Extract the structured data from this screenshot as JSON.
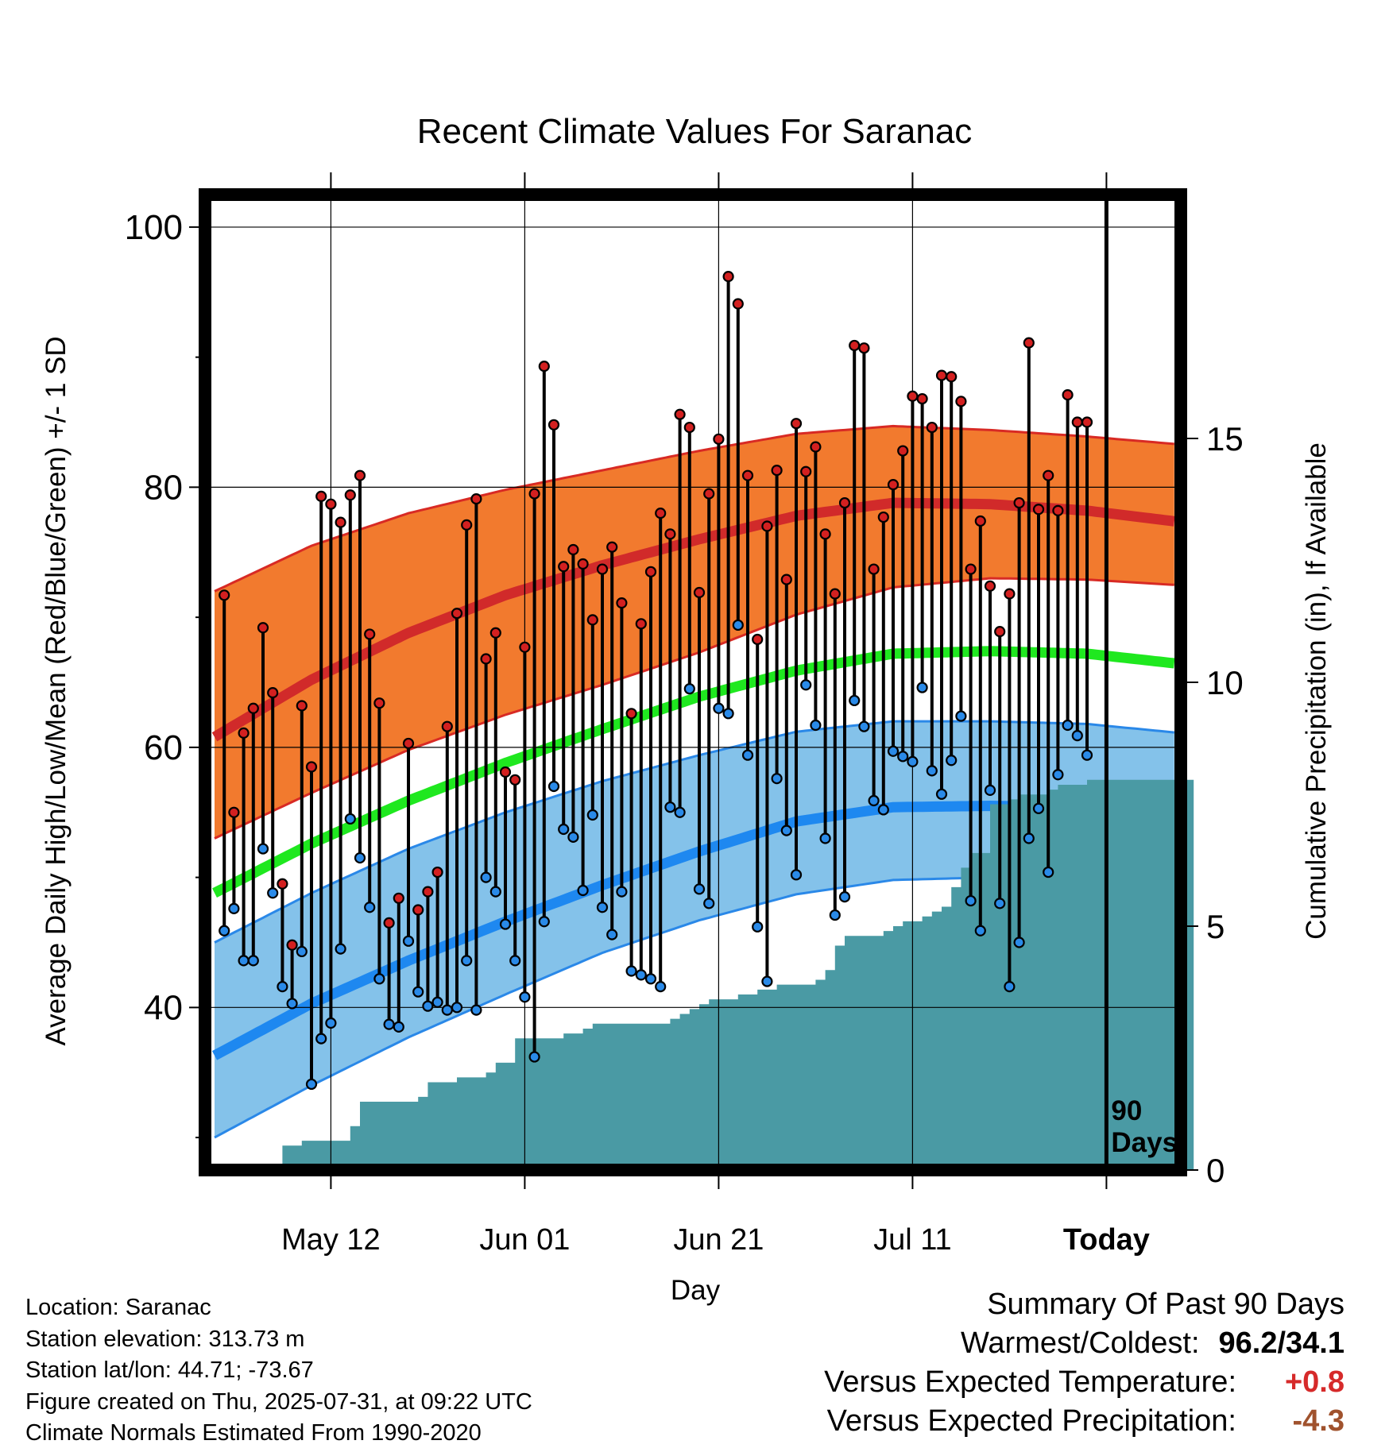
{
  "chart_data": {
    "type": "line",
    "title": "Recent Climate Values For Saranac",
    "xlabel": "Day",
    "ylabel": "Average Daily High/Low/Mean (Red/Blue/Green) +/- 1 SD",
    "y2label": "Cumulative Precipitation (in), If Available",
    "ylim": [
      27.5,
      102.5
    ],
    "y2lim": [
      0,
      20
    ],
    "yticks": [
      40,
      60,
      80,
      100
    ],
    "y2ticks": [
      0,
      5,
      10,
      15
    ],
    "xticks": [
      {
        "day": 12,
        "label": "May 12"
      },
      {
        "day": 32,
        "label": "Jun 01"
      },
      {
        "day": 52,
        "label": "Jun 21"
      },
      {
        "day": 72,
        "label": "Jul 11"
      },
      {
        "day": 92,
        "label": "Today"
      }
    ],
    "x_range": [
      0,
      101
    ],
    "today_day": 92,
    "today_label": "90 Days",
    "grid": true,
    "colors": {
      "high_band": "#f27a2e",
      "high_edge": "#d82a24",
      "high_mean": "#d12a2a",
      "low_band": "#84c2ea",
      "low_edge": "#2a88e8",
      "low_mean": "#1e88f0",
      "mean_line": "#1fe81f",
      "precip": "#4a9aa4",
      "high_marker": "#d32020",
      "low_marker": "#2a8ae8"
    },
    "normals": {
      "days": [
        0,
        10,
        20,
        30,
        40,
        50,
        60,
        70,
        80,
        90,
        101
      ],
      "high_mean": [
        60.8,
        65.2,
        68.8,
        71.7,
        74.0,
        76.0,
        77.8,
        78.8,
        78.7,
        78.2,
        77.2
      ],
      "high_upper": [
        72.0,
        75.5,
        78.0,
        79.8,
        81.3,
        82.8,
        84.1,
        84.7,
        84.4,
        83.9,
        83.2
      ],
      "high_lower": [
        53.0,
        56.5,
        59.8,
        62.5,
        64.8,
        67.3,
        70.2,
        72.3,
        73.0,
        72.9,
        72.4
      ],
      "mean": [
        48.8,
        52.6,
        55.9,
        58.8,
        61.4,
        63.9,
        65.9,
        67.2,
        67.4,
        67.2,
        66.3
      ],
      "low_mean": [
        36.3,
        40.3,
        43.6,
        46.6,
        49.4,
        52.0,
        54.3,
        55.4,
        55.5,
        55.4,
        54.6
      ],
      "low_upper": [
        45.0,
        48.8,
        52.2,
        55.0,
        57.4,
        59.4,
        61.2,
        62.0,
        62.0,
        61.8,
        61.0
      ],
      "low_lower": [
        30.0,
        34.0,
        37.7,
        41.0,
        44.2,
        46.7,
        48.7,
        49.8,
        50.0,
        49.9,
        48.9
      ]
    },
    "daily_high": [
      71.7,
      55.0,
      61.1,
      63.0,
      69.2,
      64.2,
      49.5,
      44.8,
      63.2,
      58.5,
      79.3,
      78.7,
      77.3,
      79.4,
      80.9,
      68.7,
      63.4,
      46.5,
      48.4,
      60.3,
      47.5,
      48.9,
      50.4,
      61.6,
      70.3,
      77.1,
      79.1,
      66.8,
      68.8,
      58.1,
      57.5,
      67.7,
      79.5,
      89.3,
      84.8,
      73.9,
      75.2,
      74.1,
      69.8,
      73.7,
      75.4,
      71.1,
      62.6,
      69.5,
      73.5,
      78.0,
      76.4,
      85.6,
      84.6,
      71.9,
      79.5,
      83.7,
      96.2,
      94.1,
      80.9,
      68.3,
      77.0,
      81.3,
      72.9,
      84.9,
      81.2,
      83.1,
      76.4,
      71.8,
      78.8,
      90.9,
      90.7,
      73.7,
      77.7,
      80.2,
      82.8,
      87.0,
      86.8,
      84.6,
      88.6,
      88.5,
      86.6,
      73.7,
      77.4,
      72.4,
      68.9,
      71.8,
      78.8,
      91.1,
      78.3,
      80.9,
      78.2,
      87.1,
      85.0,
      85.0
    ],
    "daily_low": [
      45.9,
      47.6,
      43.6,
      43.6,
      52.2,
      48.8,
      41.6,
      40.3,
      44.3,
      34.1,
      37.6,
      38.8,
      44.5,
      54.5,
      51.5,
      47.7,
      42.2,
      38.7,
      38.5,
      45.1,
      41.2,
      40.1,
      40.4,
      39.8,
      40.0,
      43.6,
      39.8,
      50.0,
      48.9,
      46.4,
      43.6,
      40.8,
      36.2,
      46.6,
      57.0,
      53.7,
      53.1,
      49.0,
      54.8,
      47.7,
      45.6,
      48.9,
      42.8,
      42.5,
      42.2,
      41.6,
      55.4,
      55.0,
      64.5,
      49.1,
      48.0,
      63.0,
      62.6,
      69.4,
      59.4,
      46.2,
      42.0,
      57.6,
      53.6,
      50.2,
      64.8,
      61.7,
      53.0,
      47.1,
      48.5,
      63.6,
      61.6,
      55.9,
      55.2,
      59.7,
      59.3,
      58.9,
      64.6,
      58.2,
      56.4,
      59.0,
      62.4,
      48.2,
      45.9,
      56.7,
      48.0,
      41.6,
      45.0,
      53.0,
      55.3,
      50.4,
      57.9,
      61.7,
      60.9,
      59.4
    ],
    "precip_days": [
      0,
      6,
      7,
      9,
      14,
      15,
      21,
      22,
      25,
      27,
      28,
      29,
      30,
      31,
      36,
      37,
      38,
      39,
      47,
      48,
      49,
      50,
      51,
      52,
      53,
      54,
      56,
      58,
      59,
      60,
      61,
      62,
      63,
      64,
      65,
      66,
      67,
      68,
      69,
      70,
      71,
      72,
      73,
      74,
      75,
      76,
      77,
      78,
      79,
      80,
      81,
      82,
      83,
      84,
      85,
      86,
      87,
      88,
      89,
      90,
      91,
      92,
      101
    ],
    "precip_cum": [
      0,
      0,
      0.5,
      0.6,
      0.9,
      1.4,
      1.5,
      1.8,
      1.9,
      1.9,
      2.0,
      2.2,
      2.2,
      2.7,
      2.8,
      2.8,
      2.9,
      3.0,
      3.1,
      3.2,
      3.3,
      3.4,
      3.5,
      3.5,
      3.5,
      3.6,
      3.7,
      3.8,
      3.8,
      3.8,
      3.8,
      3.9,
      4.1,
      4.6,
      4.8,
      4.8,
      4.8,
      4.8,
      4.9,
      5.0,
      5.1,
      5.1,
      5.2,
      5.3,
      5.4,
      5.8,
      6.2,
      6.5,
      6.5,
      7.5,
      7.5,
      7.6,
      7.7,
      7.7,
      7.7,
      7.8,
      7.9,
      7.9,
      7.9,
      8.0,
      8.0,
      8.0,
      8.0
    ]
  },
  "info": {
    "location": "Location: Saranac",
    "elevation": "Station elevation: 313.73 m",
    "latlon": "Station lat/lon: 44.71; -73.67",
    "created": "Figure created on Thu, 2025-07-31, at 09:22 UTC",
    "normals": "Climate Normals Estimated From 1990-2020"
  },
  "summary": {
    "heading": "Summary Of Past 90 Days",
    "warm_cold_label": "Warmest/Coldest:",
    "warm_cold_value": "96.2/34.1",
    "temp_label": "Versus Expected Temperature:",
    "temp_value": "+0.8",
    "temp_color": "#d62a2a",
    "precip_label": "Versus Expected Precipitation:",
    "precip_value": "-4.3",
    "precip_color": "#a0522d"
  }
}
